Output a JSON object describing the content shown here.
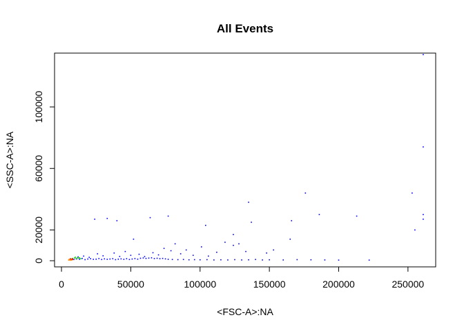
{
  "chart_data": {
    "type": "scatter",
    "title": "All Events",
    "xlabel": "<FSC-A>:NA",
    "ylabel": "<SSC-A>:NA",
    "xlim": [
      -5000,
      270000
    ],
    "ylim": [
      -4000,
      135000
    ],
    "xticks": [
      0,
      50000,
      100000,
      150000,
      200000,
      250000
    ],
    "xtick_labels": [
      "0",
      "50000",
      "100000",
      "150000",
      "200000",
      "250000"
    ],
    "yticks": [
      0,
      20000,
      60000,
      100000
    ],
    "ytick_labels": [
      "0",
      "20000",
      "60000",
      "100000"
    ],
    "grid": false,
    "legend": "none",
    "density_colors": [
      "#0000ff",
      "#00cc00",
      "#ff0000",
      "#ff8c00"
    ],
    "series": [
      {
        "color": "#0000ff",
        "points": [
          [
            9000,
            800
          ],
          [
            11000,
            1200
          ],
          [
            13000,
            900
          ],
          [
            15000,
            1500
          ],
          [
            17000,
            700
          ],
          [
            19000,
            1100
          ],
          [
            21000,
            1300
          ],
          [
            23000,
            900
          ],
          [
            25000,
            1000
          ],
          [
            27000,
            1400
          ],
          [
            29000,
            800
          ],
          [
            31000,
            1200
          ],
          [
            33000,
            900
          ],
          [
            35000,
            1100
          ],
          [
            37000,
            1300
          ],
          [
            39000,
            700
          ],
          [
            41000,
            1000
          ],
          [
            43000,
            1200
          ],
          [
            45000,
            900
          ],
          [
            47000,
            1300
          ],
          [
            49000,
            800
          ],
          [
            51000,
            1100
          ],
          [
            53000,
            1400
          ],
          [
            55000,
            1000
          ],
          [
            57000,
            1600
          ],
          [
            59000,
            1800
          ],
          [
            61000,
            1500
          ],
          [
            63000,
            1700
          ],
          [
            65000,
            1900
          ],
          [
            67000,
            1400
          ],
          [
            69000,
            1600
          ],
          [
            71000,
            1300
          ],
          [
            73000,
            1500
          ],
          [
            75000,
            1200
          ],
          [
            77000,
            900
          ],
          [
            80000,
            800
          ],
          [
            84000,
            700
          ],
          [
            88000,
            800
          ],
          [
            92000,
            600
          ],
          [
            96000,
            700
          ],
          [
            100000,
            600
          ],
          [
            105000,
            700
          ],
          [
            110000,
            500
          ],
          [
            115000,
            600
          ],
          [
            120000,
            500
          ],
          [
            125000,
            700
          ],
          [
            130000,
            500
          ],
          [
            135000,
            600
          ],
          [
            140000,
            800
          ],
          [
            145000,
            500
          ],
          [
            150000,
            600
          ],
          [
            160000,
            500
          ],
          [
            170000,
            700
          ],
          [
            180000,
            600
          ],
          [
            190000,
            500
          ],
          [
            200000,
            400
          ],
          [
            222000,
            400
          ],
          [
            12000,
            2500
          ],
          [
            16000,
            3000
          ],
          [
            20000,
            2200
          ],
          [
            26000,
            4500
          ],
          [
            30000,
            3200
          ],
          [
            38000,
            5000
          ],
          [
            42000,
            2800
          ],
          [
            46000,
            6000
          ],
          [
            50000,
            3500
          ],
          [
            56000,
            4200
          ],
          [
            60000,
            2700
          ],
          [
            66000,
            5200
          ],
          [
            70000,
            3800
          ],
          [
            74000,
            8000
          ],
          [
            79000,
            6500
          ],
          [
            82000,
            11000
          ],
          [
            86000,
            4500
          ],
          [
            90000,
            7000
          ],
          [
            95000,
            3500
          ],
          [
            101000,
            9000
          ],
          [
            106000,
            3000
          ],
          [
            112000,
            5500
          ],
          [
            118000,
            12000
          ],
          [
            124000,
            10000
          ],
          [
            128000,
            11000
          ],
          [
            133000,
            6000
          ],
          [
            153000,
            7000
          ],
          [
            165000,
            14000
          ],
          [
            24000,
            27000
          ],
          [
            33000,
            27500
          ],
          [
            40000,
            26000
          ],
          [
            52000,
            14000
          ],
          [
            64000,
            28000
          ],
          [
            77000,
            29000
          ],
          [
            104000,
            23000
          ],
          [
            124000,
            17000
          ],
          [
            135000,
            38000
          ],
          [
            137000,
            25000
          ],
          [
            148000,
            5000
          ],
          [
            166000,
            26000
          ],
          [
            176000,
            44000
          ],
          [
            186000,
            30000
          ],
          [
            213000,
            29000
          ],
          [
            253000,
            44000
          ],
          [
            255000,
            20000
          ],
          [
            261000,
            74000
          ],
          [
            261000,
            27000
          ],
          [
            261000,
            30000
          ],
          [
            261000,
            134000
          ]
        ]
      },
      {
        "color": "#00cc00",
        "points": [
          [
            8000,
            1500
          ],
          [
            9500,
            1800
          ],
          [
            10500,
            1200
          ],
          [
            11500,
            2000
          ],
          [
            12500,
            1600
          ],
          [
            14000,
            1300
          ],
          [
            7500,
            1000
          ],
          [
            10000,
            2300
          ],
          [
            13000,
            1900
          ]
        ]
      },
      {
        "color": "#ff0000",
        "points": [
          [
            6000,
            700
          ],
          [
            6800,
            900
          ],
          [
            7200,
            600
          ],
          [
            7800,
            1100
          ],
          [
            6500,
            1300
          ],
          [
            8200,
            800
          ]
        ]
      },
      {
        "color": "#ff8c00",
        "points": [
          [
            5200,
            400
          ],
          [
            5800,
            600
          ],
          [
            6300,
            300
          ],
          [
            6900,
            500
          ],
          [
            5500,
            900
          ],
          [
            7400,
            350
          ]
        ]
      }
    ]
  }
}
